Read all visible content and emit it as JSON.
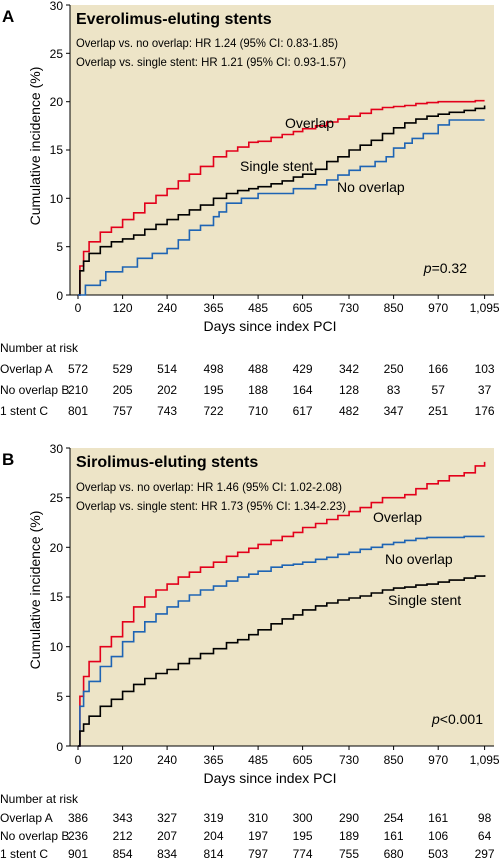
{
  "colors": {
    "panel_bg": "#ede4c7",
    "overlap": "#e3001b",
    "no_overlap": "#1e64b4",
    "single_stent": "#000000"
  },
  "chart_data": [
    {
      "type": "line",
      "panel_label": "A",
      "title": "Everolimus-eluting stents",
      "hr_lines": [
        "Overlap vs. no overlap: HR 1.24 (95% CI: 0.83-1.85)",
        "Overlap vs. single stent: HR 1.21 (95% CI: 0.93-1.57)"
      ],
      "p_prefix": "p",
      "p_suffix": "=0.32",
      "xlabel": "Days since index PCI",
      "ylabel": "Cumulative incidence (%)",
      "xlim": [
        0,
        1125
      ],
      "ylim": [
        0,
        30
      ],
      "x_ticks": [
        0,
        120,
        240,
        365,
        485,
        605,
        730,
        850,
        970,
        1095
      ],
      "x_tick_labels": [
        "0",
        "120",
        "240",
        "365",
        "485",
        "605",
        "730",
        "850",
        "970",
        "1,095"
      ],
      "y_ticks": [
        0,
        5,
        10,
        15,
        20,
        25,
        30
      ],
      "series": [
        {
          "name": "Overlap",
          "color_key": "overlap",
          "x": [
            0,
            5,
            15,
            30,
            60,
            90,
            120,
            150,
            180,
            210,
            240,
            270,
            300,
            330,
            365,
            400,
            430,
            460,
            485,
            520,
            550,
            580,
            605,
            640,
            670,
            700,
            730,
            760,
            790,
            820,
            850,
            880,
            910,
            940,
            970,
            1000,
            1040,
            1070,
            1095
          ],
          "y": [
            0,
            3,
            4.5,
            5.5,
            6.5,
            7,
            7.8,
            8.5,
            9.5,
            10.3,
            11,
            11.8,
            12.5,
            13.3,
            14.3,
            14.9,
            15.3,
            15.8,
            15.9,
            16.3,
            16.6,
            16.9,
            17.2,
            17.5,
            17.9,
            18.2,
            18.5,
            18.8,
            19.2,
            19.4,
            19.5,
            19.6,
            19.8,
            19.9,
            20,
            20,
            20,
            20.1,
            20.1
          ]
        },
        {
          "name": "Single stent",
          "color_key": "single_stent",
          "x": [
            0,
            5,
            15,
            30,
            60,
            90,
            120,
            150,
            180,
            210,
            240,
            270,
            300,
            330,
            365,
            400,
            430,
            460,
            485,
            520,
            550,
            580,
            605,
            640,
            670,
            700,
            730,
            760,
            790,
            820,
            850,
            880,
            910,
            940,
            970,
            1000,
            1040,
            1070,
            1095
          ],
          "y": [
            0,
            2.5,
            3.5,
            4.3,
            5,
            5.5,
            5.8,
            6.2,
            6.8,
            7.3,
            7.8,
            8.3,
            8.8,
            9.3,
            10,
            10.5,
            10.8,
            11,
            11.2,
            11.5,
            11.8,
            12.2,
            12.5,
            13,
            13.8,
            14.3,
            15,
            15.5,
            16,
            16.7,
            17.3,
            17.8,
            18.2,
            18.5,
            18.7,
            18.9,
            19.1,
            19.3,
            19.6
          ]
        },
        {
          "name": "No overlap",
          "color_key": "no_overlap",
          "x": [
            0,
            20,
            60,
            75,
            120,
            160,
            200,
            240,
            270,
            300,
            330,
            365,
            380,
            400,
            440,
            485,
            520,
            550,
            580,
            605,
            640,
            670,
            700,
            730,
            760,
            800,
            830,
            850,
            880,
            900,
            930,
            970,
            1000,
            1040,
            1095
          ],
          "y": [
            0,
            1,
            1.5,
            2.4,
            2.9,
            3.8,
            4.3,
            4.8,
            5.7,
            6.7,
            7.2,
            8.1,
            8.6,
            9.5,
            10,
            10.5,
            10.5,
            10.5,
            11,
            11,
            11.4,
            11.9,
            12.4,
            12.9,
            13.3,
            13.8,
            14.3,
            15.2,
            15.7,
            16.2,
            16.7,
            17.6,
            18.1,
            18.1,
            18.1
          ]
        }
      ],
      "risk_table": {
        "header": "Number at risk",
        "rows": [
          {
            "label": "Overlap A",
            "values": [
              "572",
              "529",
              "514",
              "498",
              "488",
              "429",
              "342",
              "250",
              "166",
              "103"
            ]
          },
          {
            "label": "No overlap B",
            "values": [
              "210",
              "205",
              "202",
              "195",
              "188",
              "164",
              "128",
              "83",
              "57",
              "37"
            ]
          },
          {
            "label": "1 stent C",
            "values": [
              "801",
              "757",
              "743",
              "722",
              "710",
              "617",
              "482",
              "347",
              "251",
              "176"
            ]
          }
        ]
      }
    },
    {
      "type": "line",
      "panel_label": "B",
      "title": "Sirolimus-eluting stents",
      "hr_lines": [
        "Overlap vs. no overlap: HR 1.46 (95% CI: 1.02-2.08)",
        "Overlap vs. single stent: HR 1.73 (95% CI: 1.34-2.23)"
      ],
      "p_prefix": "p",
      "p_suffix": "<0.001",
      "xlabel": "Days since index PCI",
      "ylabel": "Cumulative incidence (%)",
      "xlim": [
        0,
        1125
      ],
      "ylim": [
        0,
        30
      ],
      "x_ticks": [
        0,
        120,
        240,
        365,
        485,
        605,
        730,
        850,
        970,
        1095
      ],
      "x_tick_labels": [
        "0",
        "120",
        "240",
        "365",
        "485",
        "605",
        "730",
        "850",
        "970",
        "1,095"
      ],
      "y_ticks": [
        0,
        5,
        10,
        15,
        20,
        25,
        30
      ],
      "series": [
        {
          "name": "Overlap",
          "color_key": "overlap",
          "x": [
            0,
            5,
            15,
            30,
            60,
            90,
            120,
            150,
            180,
            210,
            240,
            270,
            300,
            330,
            365,
            400,
            430,
            460,
            485,
            520,
            550,
            580,
            605,
            640,
            670,
            700,
            730,
            760,
            790,
            820,
            850,
            880,
            910,
            940,
            970,
            1000,
            1040,
            1070,
            1095
          ],
          "y": [
            0,
            5,
            7,
            8.5,
            10,
            11,
            12.5,
            14,
            15,
            15.7,
            16.3,
            17,
            17.5,
            18,
            18.5,
            19.1,
            19.5,
            19.9,
            20.3,
            20.7,
            21.1,
            21.5,
            22,
            22.4,
            22.8,
            23.2,
            23.6,
            24,
            24.5,
            25,
            25,
            25.3,
            25.9,
            26.4,
            26.7,
            27.2,
            27.5,
            28.2,
            28.6
          ]
        },
        {
          "name": "No overlap",
          "color_key": "no_overlap",
          "x": [
            0,
            5,
            15,
            30,
            60,
            90,
            120,
            150,
            180,
            210,
            240,
            270,
            300,
            330,
            365,
            400,
            430,
            460,
            485,
            520,
            550,
            580,
            605,
            640,
            670,
            700,
            730,
            760,
            790,
            820,
            850,
            880,
            910,
            940,
            970,
            1000,
            1040,
            1070,
            1095
          ],
          "y": [
            0,
            4,
            5.5,
            6.5,
            8,
            9,
            10.5,
            11.5,
            12.5,
            13.3,
            14,
            14.6,
            15.2,
            15.7,
            16.1,
            16.6,
            17,
            17.3,
            17.6,
            18,
            18.2,
            18.3,
            18.5,
            18.8,
            19,
            19.3,
            19.5,
            19.8,
            20,
            20.3,
            20.5,
            20.7,
            20.9,
            21,
            21,
            21,
            21.1,
            21.1,
            21.1
          ]
        },
        {
          "name": "Single stent",
          "color_key": "single_stent",
          "x": [
            0,
            5,
            15,
            30,
            60,
            90,
            120,
            150,
            180,
            210,
            240,
            270,
            300,
            330,
            365,
            400,
            430,
            460,
            485,
            520,
            550,
            580,
            605,
            640,
            670,
            700,
            730,
            760,
            790,
            820,
            850,
            880,
            910,
            940,
            970,
            1000,
            1040,
            1070,
            1095
          ],
          "y": [
            0,
            1.5,
            2.2,
            3,
            4,
            4.7,
            5.5,
            6.2,
            6.8,
            7.3,
            7.7,
            8.3,
            8.8,
            9.3,
            9.8,
            10.4,
            10.7,
            11.2,
            11.7,
            12.3,
            12.8,
            13.2,
            13.7,
            14.1,
            14.4,
            14.7,
            14.9,
            15.1,
            15.4,
            15.7,
            15.9,
            16,
            16.2,
            16.3,
            16.5,
            16.7,
            16.9,
            17.1,
            17.2
          ]
        }
      ],
      "risk_table": {
        "header": "Number at risk",
        "rows": [
          {
            "label": "Overlap A",
            "values": [
              "386",
              "343",
              "327",
              "319",
              "310",
              "300",
              "290",
              "254",
              "161",
              "98"
            ]
          },
          {
            "label": "No overlap B",
            "values": [
              "236",
              "212",
              "207",
              "204",
              "197",
              "195",
              "189",
              "161",
              "106",
              "64"
            ]
          },
          {
            "label": "1 stent C",
            "values": [
              "901",
              "854",
              "834",
              "814",
              "797",
              "774",
              "755",
              "680",
              "503",
              "297"
            ]
          }
        ]
      }
    }
  ]
}
